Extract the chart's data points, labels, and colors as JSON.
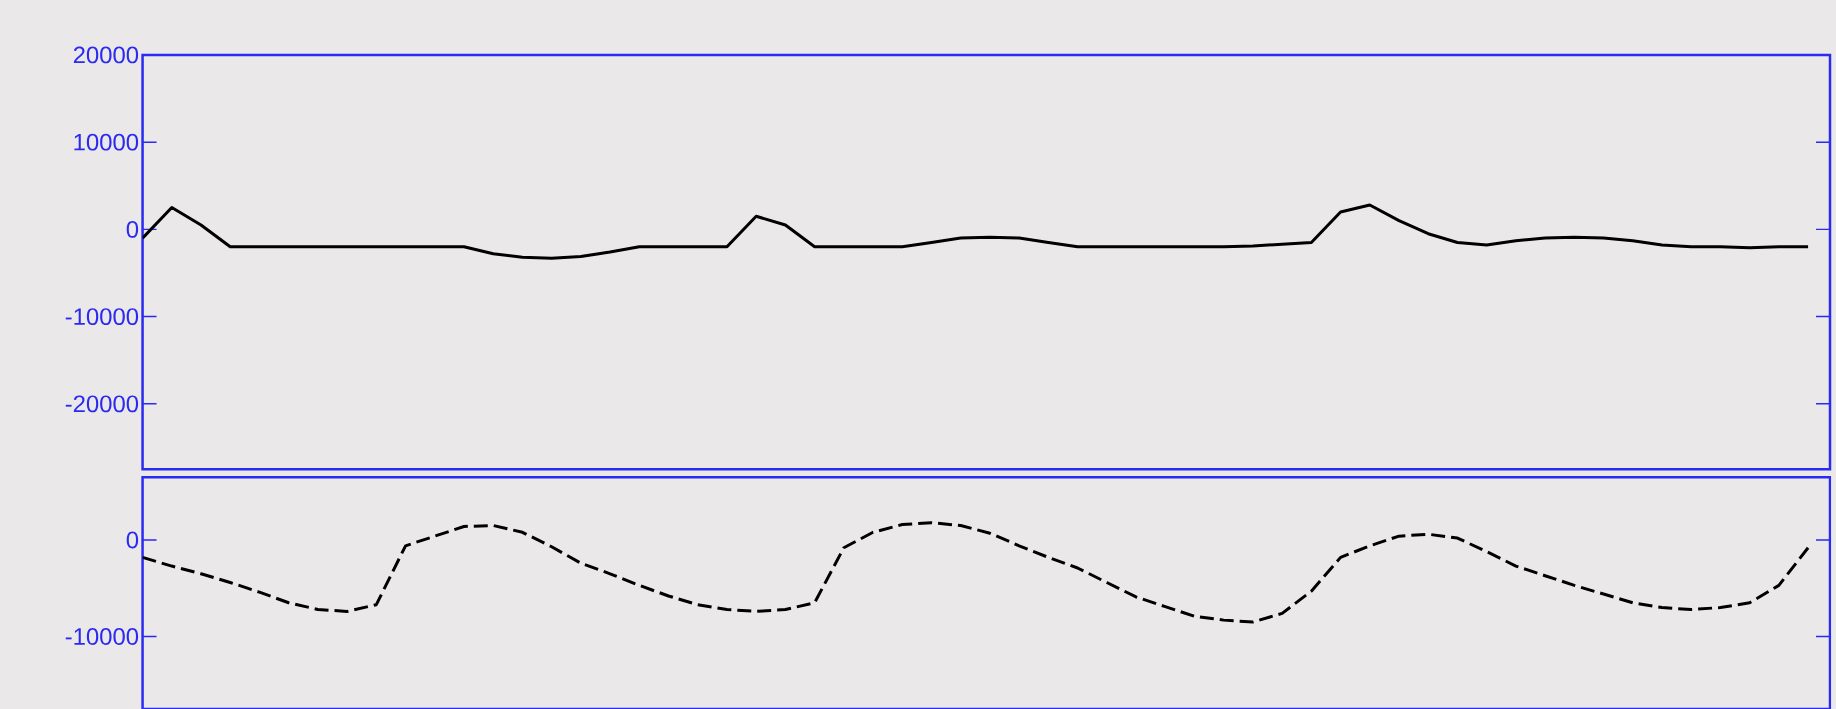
{
  "chart_data": [
    {
      "type": "line",
      "categories": [
        null,
        null,
        null,
        null,
        null,
        null,
        null,
        null,
        null,
        null,
        null,
        null,
        null,
        null,
        null,
        null,
        null,
        null,
        null,
        null,
        null,
        null,
        null,
        null,
        null,
        null,
        null,
        null,
        null,
        null,
        null,
        null,
        null,
        null,
        null,
        null,
        null,
        null,
        null,
        null,
        null,
        null,
        null,
        null,
        null,
        null,
        null,
        null,
        null,
        null,
        null,
        null,
        null,
        null,
        null,
        null,
        null,
        null
      ],
      "series": [
        {
          "color": "#000000",
          "line_style": "solid",
          "values": [
            -1000,
            2500,
            500,
            -2000,
            -2000,
            -2000,
            -2000,
            -2000,
            -2000,
            -2000,
            -2000,
            -2000,
            -2800,
            -3200,
            -3300,
            -3100,
            -2600,
            -2000,
            -2000,
            -2000,
            -2000,
            1500,
            500,
            -2000,
            -2000,
            -2000,
            -2000,
            -1500,
            -1000,
            -900,
            -1000,
            -1500,
            -2000,
            -2000,
            -2000,
            -2000,
            -2000,
            -2000,
            -1900,
            -1700,
            -1500,
            2000,
            2800,
            1000,
            -500,
            -1500,
            -1800,
            -1300,
            -1000,
            -900,
            -1000,
            -1300,
            -1800,
            -2000,
            -2000,
            -2100,
            -2000,
            -2000
          ]
        }
      ],
      "ylim": [
        -27500,
        20000
      ],
      "yticks": [
        {
          "value": 20000,
          "label": "20000"
        },
        {
          "value": 10000,
          "label": "10000"
        },
        {
          "value": 0,
          "label": "0"
        },
        {
          "value": -10000,
          "label": "-10000"
        },
        {
          "value": -20000,
          "label": "-20000"
        }
      ],
      "tick_labels": "y"
    },
    {
      "type": "line",
      "categories": [
        null,
        null,
        null,
        null,
        null,
        null,
        null,
        null,
        null,
        null,
        null,
        null,
        null,
        null,
        null,
        null,
        null,
        null,
        null,
        null,
        null,
        null,
        null,
        null,
        null,
        null,
        null,
        null,
        null,
        null,
        null,
        null,
        null,
        null,
        null,
        null,
        null,
        null,
        null,
        null,
        null,
        null,
        null,
        null,
        null,
        null,
        null,
        null,
        null,
        null,
        null,
        null,
        null,
        null,
        null,
        null,
        null,
        null
      ],
      "series": [
        {
          "color": "#000000",
          "line_style": "dashed",
          "values": [
            -1800,
            -2700,
            -3500,
            -4400,
            -5400,
            -6500,
            -7200,
            -7400,
            -6700,
            -600,
            400,
            1400,
            1500,
            800,
            -700,
            -2400,
            -3500,
            -4700,
            -5800,
            -6700,
            -7200,
            -7400,
            -7200,
            -6500,
            -800,
            800,
            1600,
            1800,
            1500,
            700,
            -600,
            -1800,
            -2900,
            -4400,
            -5900,
            -6900,
            -7900,
            -8300,
            -8500,
            -7600,
            -5300,
            -1800,
            -600,
            400,
            600,
            200,
            -1200,
            -2700,
            -3700,
            -4700,
            -5600,
            -6500,
            -7000,
            -7200,
            -7000,
            -6500,
            -4700,
            -800
          ]
        }
      ],
      "ylim": [
        -17500,
        6500
      ],
      "yticks": [
        {
          "value": 0,
          "label": "0"
        },
        {
          "value": -10000,
          "label": "-10000"
        }
      ],
      "tick_labels": "y"
    }
  ]
}
